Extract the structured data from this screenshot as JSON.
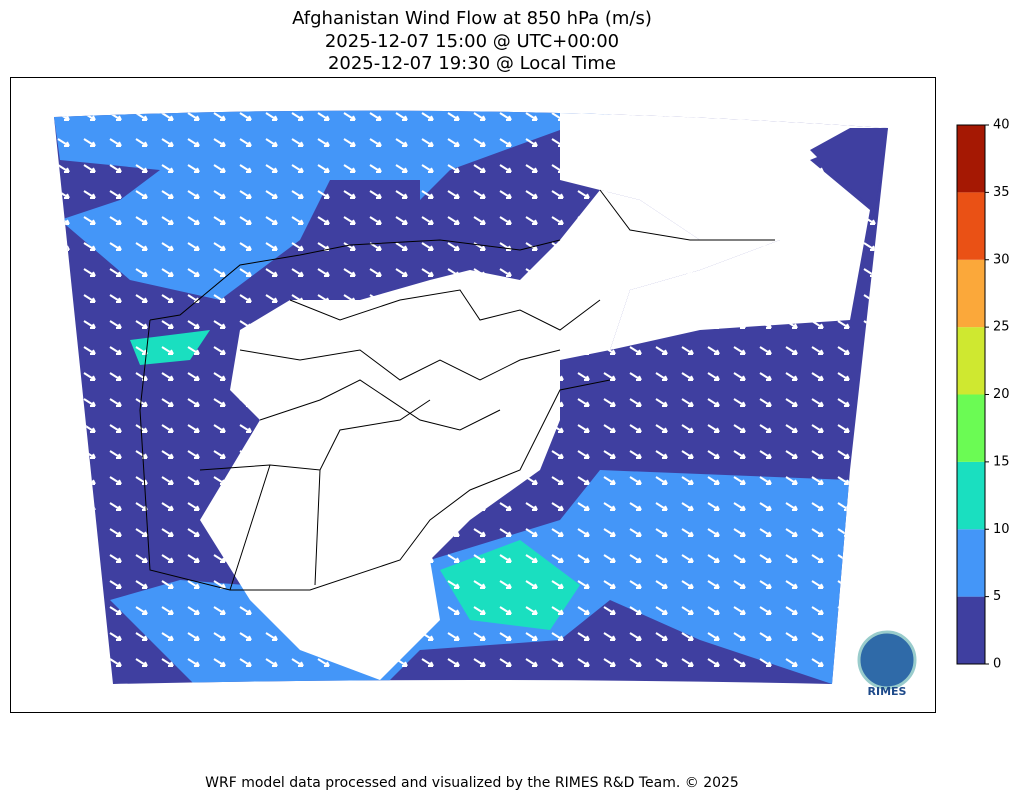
{
  "title": [
    "Afghanistan Wind Flow at 850 hPa (m/s)",
    "2025-12-07 15:00 @ UTC+00:00",
    "2025-12-07 19:30 @ Local Time"
  ],
  "colorbar": {
    "ticks": [
      0,
      5,
      10,
      15,
      20,
      25,
      30,
      35,
      40
    ],
    "colors": [
      "#3f3fa0",
      "#4496f8",
      "#1adfc0",
      "#6bfb54",
      "#cfe830",
      "#fba83a",
      "#ea5115",
      "#a51803"
    ]
  },
  "logo": "RIMES",
  "footer": "WRF model data processed and visualized by the RIMES R&D Team. © 2025"
}
